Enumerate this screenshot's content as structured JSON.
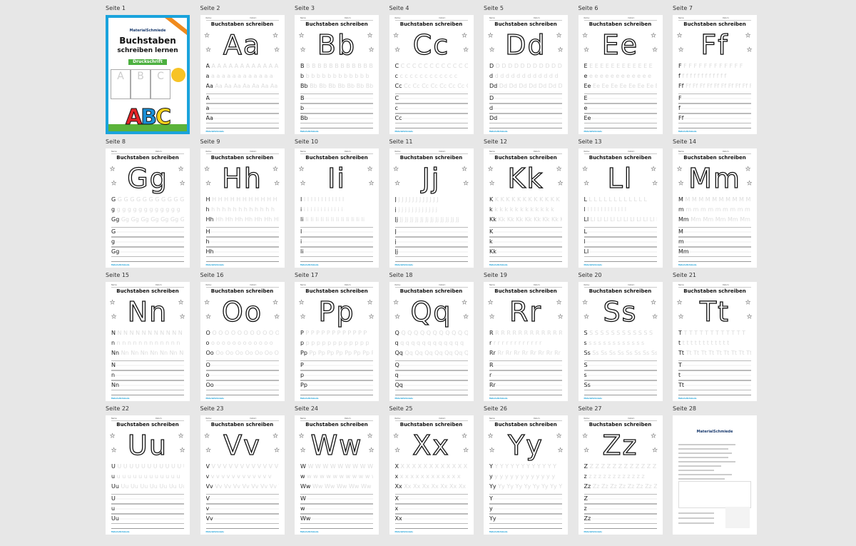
{
  "page_label_prefix": "Seite",
  "worksheet_title": "Buchstaben schreiben",
  "header_fields": [
    "Name:",
    "Datum:"
  ],
  "footer_brand": "MaterialSchmiede",
  "cover": {
    "brand": "MaterialSchmiede",
    "title_line1": "Buchstaben",
    "title_line2": "schreiben lernen",
    "badge": "Druckschrift",
    "abc": [
      "A",
      "B",
      "C"
    ],
    "abc_colors": [
      "#e32427",
      "#1a8fd6",
      "#f7d21c"
    ],
    "accent": "#1aa3dc"
  },
  "last_page": {
    "brand": "MaterialSchmiede"
  },
  "letters": [
    [
      "A",
      "a"
    ],
    [
      "B",
      "b"
    ],
    [
      "C",
      "c"
    ],
    [
      "D",
      "d"
    ],
    [
      "E",
      "e"
    ],
    [
      "F",
      "f"
    ],
    [
      "G",
      "g"
    ],
    [
      "H",
      "h"
    ],
    [
      "I",
      "i"
    ],
    [
      "J",
      "j"
    ],
    [
      "K",
      "k"
    ],
    [
      "L",
      "l"
    ],
    [
      "M",
      "m"
    ],
    [
      "N",
      "n"
    ],
    [
      "O",
      "o"
    ],
    [
      "P",
      "p"
    ],
    [
      "Q",
      "q"
    ],
    [
      "R",
      "r"
    ],
    [
      "S",
      "s"
    ],
    [
      "T",
      "t"
    ],
    [
      "U",
      "u"
    ],
    [
      "V",
      "v"
    ],
    [
      "W",
      "w"
    ],
    [
      "X",
      "x"
    ],
    [
      "Y",
      "y"
    ],
    [
      "Z",
      "z"
    ]
  ],
  "page_count": 28
}
